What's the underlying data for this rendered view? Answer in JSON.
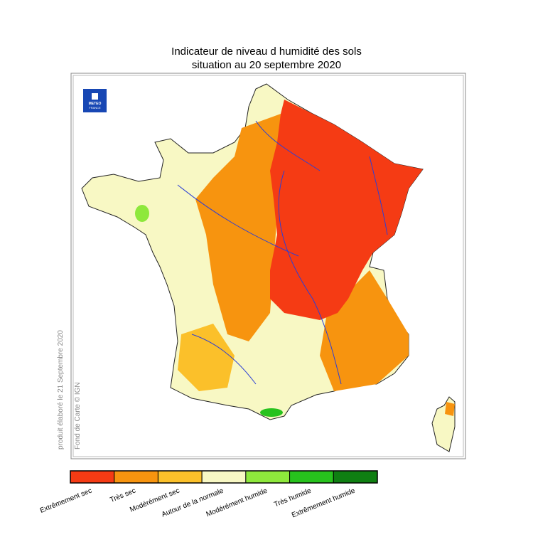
{
  "header": {
    "title": "Indicateur de niveau d humidité des sols",
    "subtitle": "situation au 20 septembre 2020"
  },
  "logo": {
    "lines": [
      "METEO",
      "FRANCE"
    ]
  },
  "side_notes": [
    "produit élaboré le 21 Septembre 2020",
    "Fond de Carte © IGN"
  ],
  "legend": {
    "items": [
      {
        "name": "Extrêmement sec",
        "color": "#f53b14"
      },
      {
        "name": "Très sec",
        "color": "#f7940f"
      },
      {
        "name": "Modérément sec",
        "color": "#fbc02a"
      },
      {
        "name": "Autour de la normale",
        "color": "#f8f8c4"
      },
      {
        "name": "Modérément humide",
        "color": "#8ee83c"
      },
      {
        "name": "Très humide",
        "color": "#27c21d"
      },
      {
        "name": "Extrêmement humide",
        "color": "#0f7f12"
      }
    ]
  }
}
